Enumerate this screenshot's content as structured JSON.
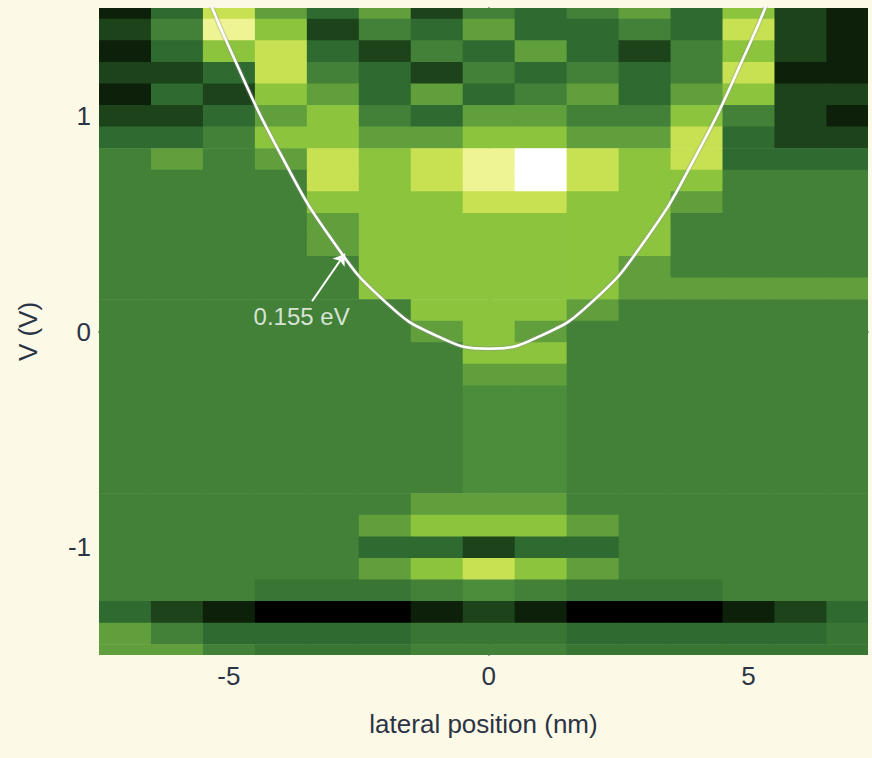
{
  "chart_data": {
    "type": "heatmap",
    "x_label": "lateral position (nm)",
    "y_label": "V (V)",
    "xlim": [
      -7.5,
      7.3
    ],
    "xticks": [
      -5,
      0,
      5
    ],
    "ylim": [
      -1.5,
      1.5
    ],
    "yticks": [
      -1,
      0,
      1
    ],
    "grid": false,
    "heatmap": {
      "x": [
        -7,
        -6,
        -5,
        -4,
        -3,
        -2,
        -1,
        0,
        1,
        2,
        3,
        4,
        5,
        6,
        7
      ],
      "y": [
        1.5,
        1.4,
        1.3,
        1.2,
        1.1,
        1.0,
        0.9,
        0.8,
        0.7,
        0.6,
        0.5,
        0.4,
        0.3,
        0.2,
        0.1,
        0.0,
        -0.1,
        -0.2,
        -0.3,
        -0.4,
        -0.5,
        -0.6,
        -0.7,
        -0.8,
        -0.9,
        -1.0,
        -1.1,
        -1.2,
        -1.3,
        -1.4,
        -1.5
      ],
      "cells": [
        [
          1,
          3,
          7,
          5,
          3,
          5,
          2,
          4,
          3,
          4,
          5,
          3,
          6,
          2,
          1
        ],
        [
          2,
          4,
          8,
          6,
          2,
          4,
          3,
          5,
          3,
          3,
          4,
          3,
          7,
          2,
          1
        ],
        [
          1,
          3,
          6,
          7,
          3,
          2,
          4,
          3,
          5,
          3,
          2,
          4,
          6,
          2,
          1
        ],
        [
          2,
          2,
          3,
          7,
          4,
          3,
          2,
          4,
          3,
          4,
          3,
          4,
          7,
          1,
          1
        ],
        [
          1,
          3,
          2,
          6,
          5,
          3,
          5,
          3,
          4,
          5,
          3,
          5,
          6,
          2,
          2
        ],
        [
          2,
          2,
          3,
          5,
          6,
          4,
          3,
          5,
          5,
          4,
          4,
          6,
          4,
          2,
          1
        ],
        [
          3,
          3,
          4,
          6,
          6,
          5,
          5,
          6,
          6,
          5,
          5,
          7,
          3,
          2,
          2
        ],
        [
          4,
          5,
          4,
          5,
          7,
          6,
          7,
          8,
          9,
          7,
          6,
          7,
          3,
          3,
          3
        ],
        [
          4,
          4,
          4,
          4,
          7,
          6,
          7,
          8,
          9,
          7,
          6,
          6,
          4,
          4,
          4
        ],
        [
          4,
          4,
          4,
          4,
          6,
          6,
          6,
          7,
          7,
          6,
          6,
          5,
          4,
          4,
          4
        ],
        [
          4,
          4,
          4,
          4,
          5,
          6,
          6,
          6,
          6,
          6,
          6,
          4,
          4,
          4,
          4
        ],
        [
          4,
          4,
          4,
          4,
          5,
          6,
          6,
          6,
          6,
          6,
          6,
          4,
          4,
          4,
          4
        ],
        [
          4,
          4,
          4,
          4,
          4,
          6,
          6,
          6,
          6,
          6,
          5,
          4,
          4,
          4,
          4
        ],
        [
          4,
          4,
          4,
          4,
          4,
          6,
          6,
          6,
          6,
          6,
          5,
          5,
          5,
          5,
          5
        ],
        [
          4,
          4,
          4,
          4,
          4,
          4,
          6,
          6,
          6,
          5,
          4,
          4,
          4,
          4,
          4
        ],
        [
          4,
          4,
          4,
          4,
          4,
          4,
          5,
          6,
          5,
          4,
          4,
          4,
          4,
          4,
          4
        ],
        [
          4,
          4,
          4,
          4,
          4,
          4,
          4,
          6,
          6,
          4,
          4,
          4,
          4,
          4,
          4
        ],
        [
          4,
          4,
          4,
          4,
          4,
          4,
          4,
          5,
          5,
          4,
          4,
          4,
          4,
          4,
          4
        ],
        [
          4,
          4,
          4,
          4,
          4,
          4,
          4,
          4.5,
          4.5,
          4,
          4,
          4,
          4,
          4,
          4
        ],
        [
          4,
          4,
          4,
          4,
          4,
          4,
          4,
          4.5,
          4.5,
          4,
          4,
          4,
          4,
          4,
          4
        ],
        [
          4,
          4,
          4,
          4,
          4,
          4,
          4,
          4.5,
          4.5,
          4,
          4,
          4,
          4,
          4,
          4
        ],
        [
          4,
          4,
          4,
          4,
          4,
          4,
          4,
          4.5,
          4.5,
          4,
          4,
          4,
          4,
          4,
          4
        ],
        [
          4,
          4,
          4,
          4,
          4,
          4,
          4,
          4.5,
          4.5,
          4,
          4,
          4,
          4,
          4,
          4
        ],
        [
          4,
          4,
          4,
          4,
          4,
          4,
          5,
          5,
          5,
          4,
          4,
          4,
          4,
          4,
          4
        ],
        [
          4,
          4,
          4,
          4,
          4,
          5,
          6,
          6,
          6,
          5,
          4,
          4,
          4,
          4,
          4
        ],
        [
          4,
          4,
          4,
          4,
          4,
          3,
          3,
          2,
          3,
          3,
          4,
          4,
          4,
          4,
          4
        ],
        [
          4,
          4,
          4,
          4,
          4,
          5,
          6,
          7,
          6,
          5,
          4,
          4,
          4,
          4,
          4
        ],
        [
          4,
          4,
          4,
          3.5,
          3.5,
          3.5,
          4,
          4.5,
          4,
          3.5,
          3.5,
          3.5,
          4,
          4,
          4
        ],
        [
          3,
          2,
          1,
          0,
          0,
          0,
          1,
          2,
          1,
          0,
          0,
          0,
          1,
          2,
          3
        ],
        [
          5,
          4,
          3,
          3,
          3,
          3,
          3.5,
          3.5,
          3.5,
          3,
          3,
          3,
          3,
          3,
          3.5
        ],
        [
          5,
          5,
          4,
          3.5,
          3.5,
          3.5,
          4,
          4,
          4,
          3.5,
          3.5,
          3.5,
          3.5,
          3.5,
          3.5
        ]
      ]
    },
    "curve": {
      "x": [
        -5.5,
        -5,
        -4,
        -3,
        -2,
        -1,
        0,
        1,
        2,
        3,
        4,
        5,
        5.5
      ],
      "y": [
        1.61,
        1.32,
        0.82,
        0.42,
        0.14,
        -0.02,
        -0.08,
        -0.02,
        0.14,
        0.42,
        0.82,
        1.32,
        1.61
      ],
      "color": "#ffffff"
    },
    "annotations": [
      {
        "text": "0.155 eV",
        "x": -3.6,
        "y": 0.07,
        "arrow_from": [
          -3.4,
          0.14
        ],
        "arrow_to": [
          -2.77,
          0.36
        ]
      }
    ]
  }
}
